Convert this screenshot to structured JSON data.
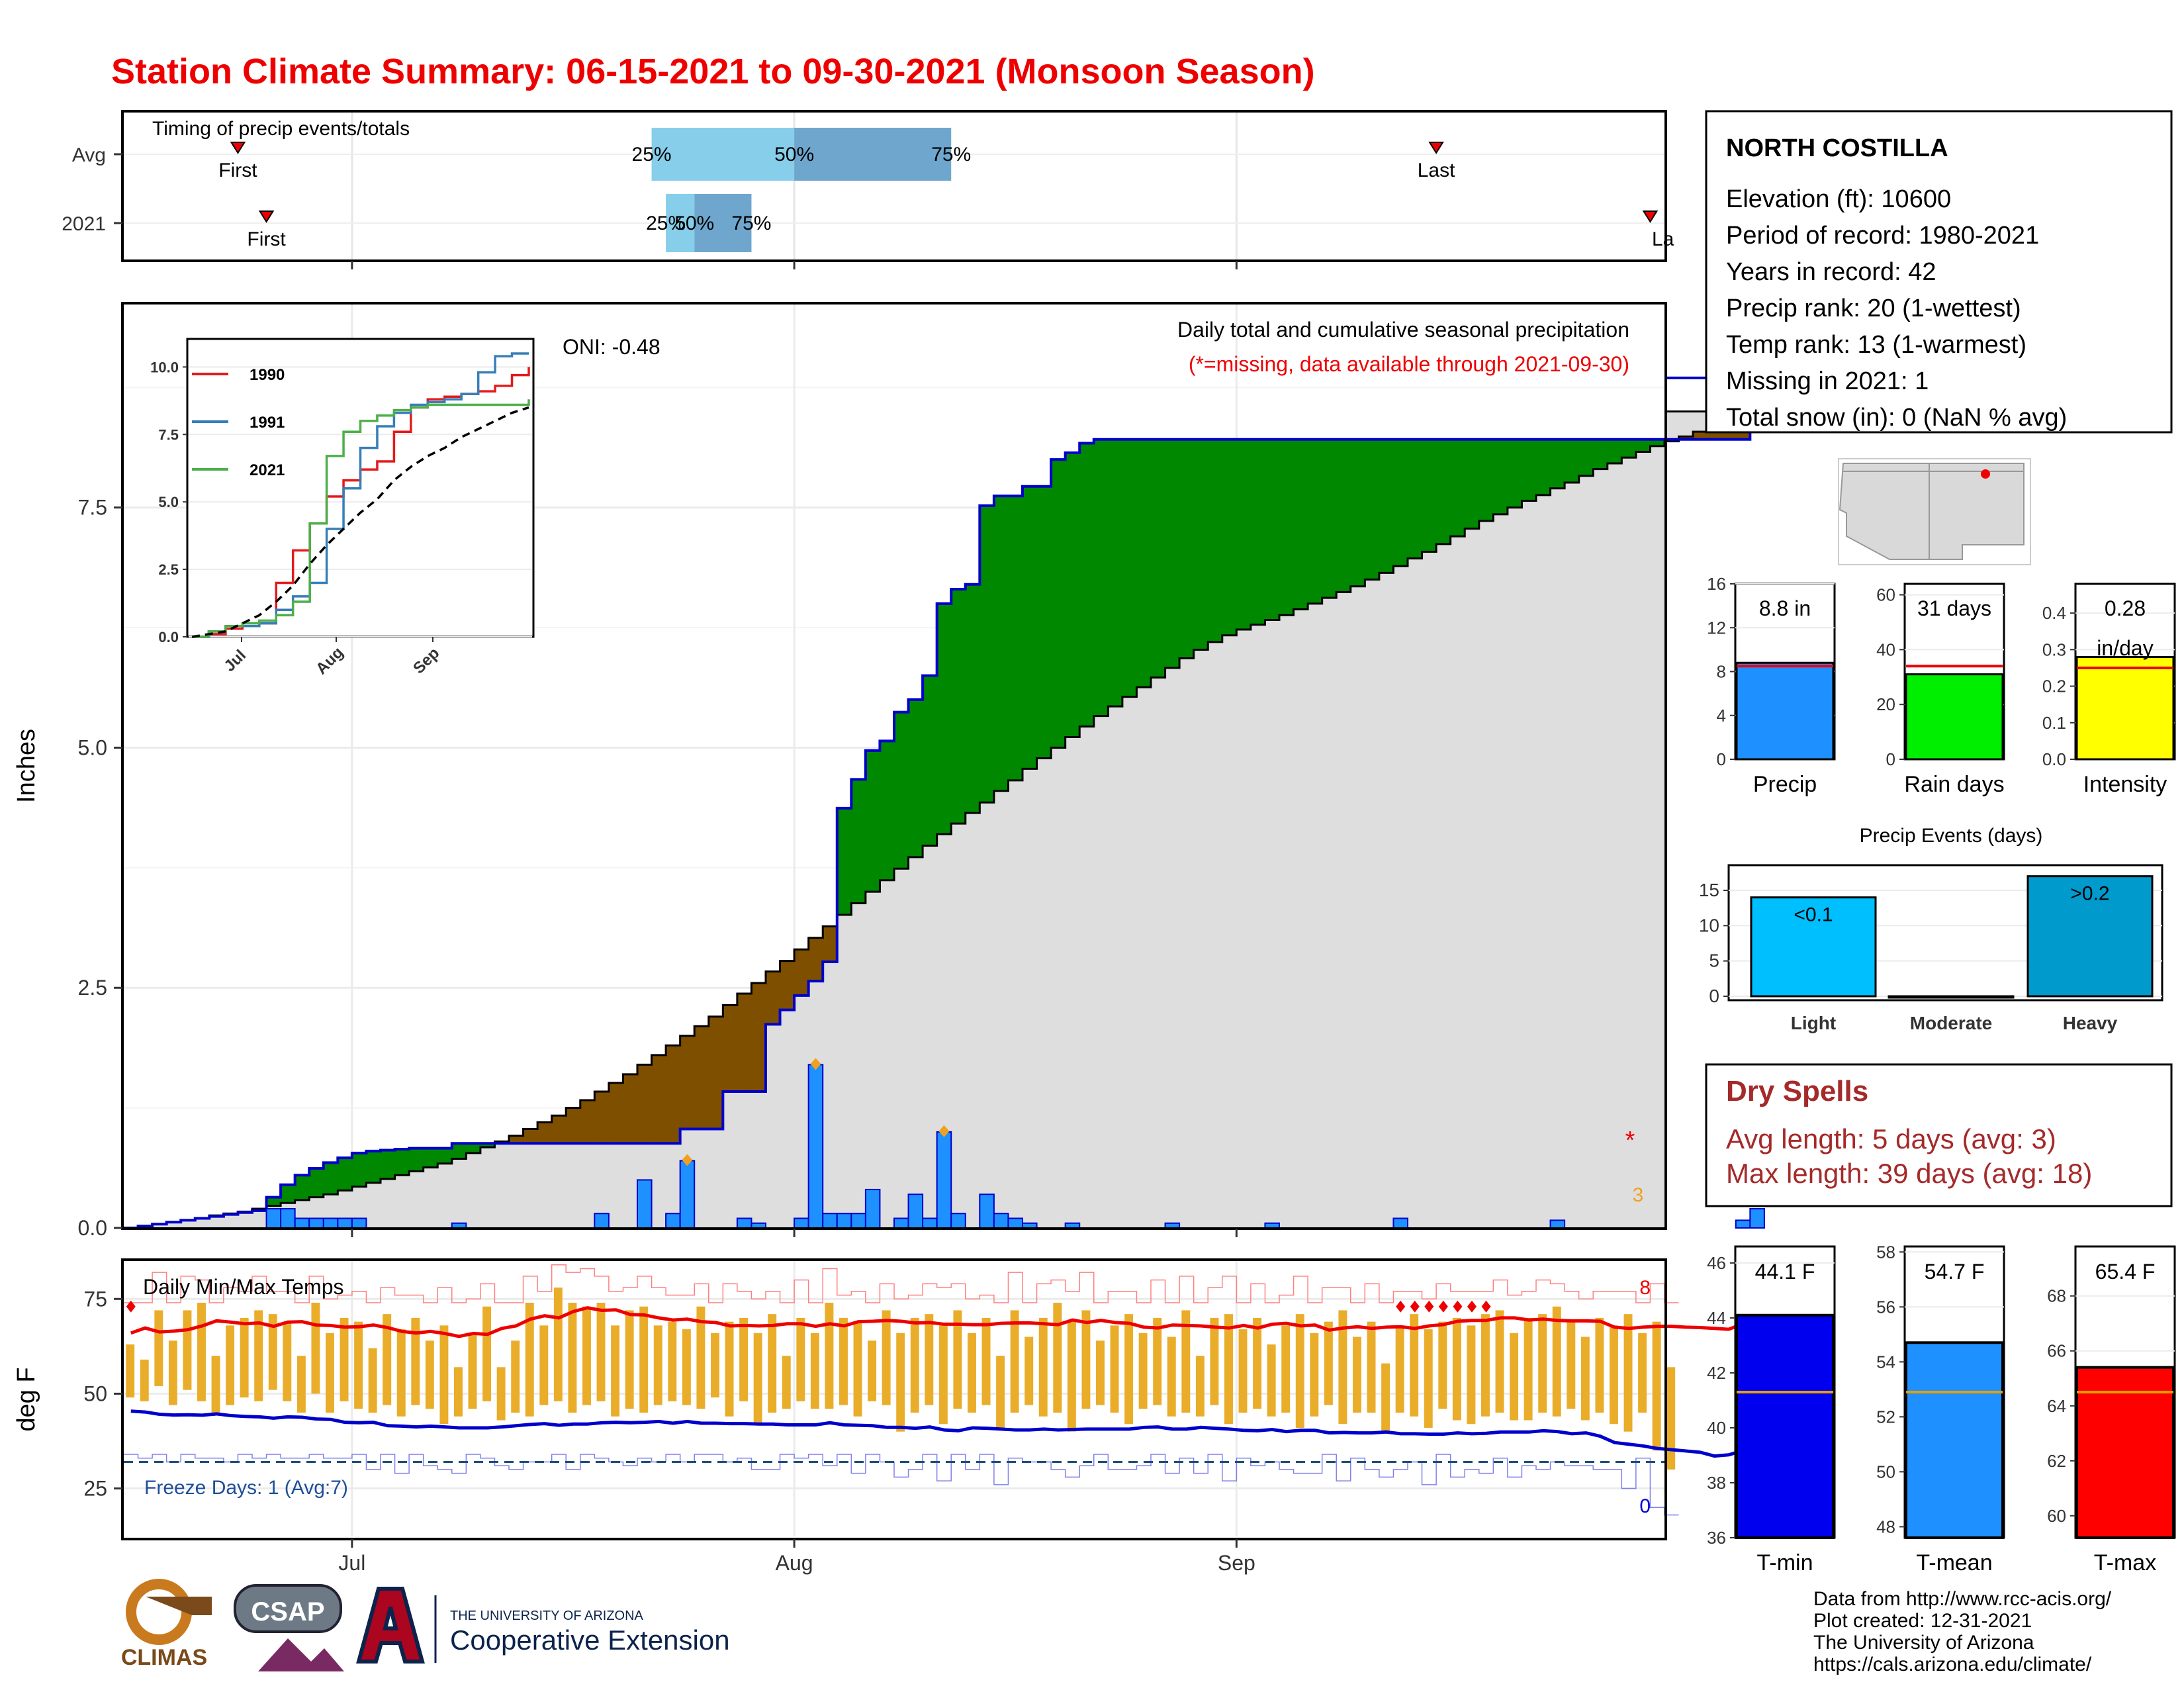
{
  "title": "Station Climate Summary: 06-15-2021 to 09-30-2021 (Monsoon Season)",
  "colors": {
    "title": "#ee0000",
    "wet_green": "#008800",
    "dry_brown": "#7f4f00",
    "avg_fill": "#dedede",
    "bar_blue": "#1e90ff",
    "outline_blue": "#0000cc",
    "q_light": "#87ceeb",
    "q_dark": "#6ea6cd",
    "temp_bar": "#e9ad2a",
    "tmax_line": "#ee0000",
    "tmin_line": "#0000cc",
    "dry_red": "#a52a2a",
    "rain_green": "#00ee00",
    "intensity_yellow": "#ffff00",
    "light_cyan": "#00bfff",
    "heavy_teal": "#009acd",
    "tmin_blue": "#0000ee",
    "tmean_blue": "#1e90ff",
    "tmax_red": "#ff0000",
    "avg_orange": "#e69f00"
  },
  "timing": {
    "title": "Timing of precip events/totals",
    "rows": [
      "Avg",
      "2021"
    ],
    "first_label": "First",
    "last_label": "Last",
    "last_label_cut": "La",
    "q_labels": [
      "25%",
      "50%",
      "75%"
    ]
  },
  "x_axis": {
    "ticks": [
      "Jul",
      "Aug",
      "Sep"
    ]
  },
  "precip": {
    "ylabel": "Inches",
    "yticks": [
      "0.0",
      "2.5",
      "5.0",
      "7.5"
    ],
    "oni": "ONI: -0.48",
    "caption": "Daily total and cumulative seasonal precipitation",
    "missing_note": "(*=missing, data available through 2021-09-30)",
    "missing_star": "*",
    "missing_count": "3"
  },
  "inset": {
    "yticks": [
      "0.0",
      "2.5",
      "5.0",
      "7.5",
      "10.0"
    ],
    "xticks": [
      "Jul",
      "Aug",
      "Sep"
    ],
    "legend": [
      {
        "label": "1990",
        "color": "#e41a1c"
      },
      {
        "label": "1991",
        "color": "#377eb8"
      },
      {
        "label": "2021",
        "color": "#4daf4a"
      }
    ]
  },
  "temps": {
    "ylabel": "deg F",
    "yticks": [
      "25",
      "50",
      "75"
    ],
    "title": "Daily Min/Max Temps",
    "freeze": "Freeze Days: 1 (Avg:7)",
    "hot_count": "8",
    "cold_count": "0"
  },
  "station": {
    "name": "NORTH COSTILLA",
    "lines": [
      "Elevation (ft): 10600",
      "Period of record: 1980-2021",
      "Years in record: 42",
      "Precip rank: 20 (1-wettest)",
      "Temp rank: 13 (1-warmest)",
      "Missing in 2021: 1",
      "Total snow (in): 0 (NaN % avg)"
    ]
  },
  "mini_bars": [
    {
      "label": "Precip",
      "value_label": "8.8 in",
      "yticks": [
        "0",
        "4",
        "8",
        "12",
        "16"
      ],
      "ymax": 16
    },
    {
      "label": "Rain days",
      "value_label": "31 days",
      "yticks": [
        "0",
        "20",
        "40",
        "60"
      ],
      "ymax": 64
    },
    {
      "label": "Intensity",
      "value_label": "0.28",
      "value_label2": "in/day",
      "yticks": [
        "0.0",
        "0.1",
        "0.2",
        "0.3",
        "0.4"
      ],
      "ymax": 0.48
    }
  ],
  "events": {
    "title": "Precip Events (days)",
    "categories": [
      "Light",
      "Moderate",
      "Heavy"
    ],
    "yticks": [
      "0",
      "5",
      "10",
      "15"
    ],
    "labels": [
      "<0.1",
      "",
      ">0.2"
    ]
  },
  "dry_spells": {
    "title": "Dry Spells",
    "avg": "Avg length: 5 days (avg: 3)",
    "max": "Max length: 39 days (avg: 18)"
  },
  "temp_bars": [
    {
      "label": "T-min",
      "value_label": "44.1 F",
      "yticks": [
        "36",
        "38",
        "40",
        "42",
        "44",
        "46"
      ]
    },
    {
      "label": "T-mean",
      "value_label": "54.7 F",
      "yticks": [
        "48",
        "50",
        "52",
        "54",
        "56",
        "58"
      ]
    },
    {
      "label": "T-max",
      "value_label": "65.4 F",
      "yticks": [
        "60",
        "62",
        "64",
        "66",
        "68"
      ]
    }
  ],
  "footer": {
    "lines": [
      "Data from http://www.rcc-acis.org/",
      "Plot created: 12-31-2021",
      "The University of Arizona",
      "https://cals.arizona.edu/climate/"
    ]
  },
  "logos": {
    "climas": "CLIMAS",
    "csap": "CSAP",
    "ua_small": "THE UNIVERSITY OF ARIZONA",
    "ua_big": "Cooperative Extension"
  },
  "chart_data": [
    {
      "type": "bar",
      "title": "Timing of precip events/totals",
      "categories": [
        "Avg",
        "2021"
      ],
      "series": [
        {
          "name": "First",
          "values": [
            "06-23",
            "06-25"
          ]
        },
        {
          "name": "25%",
          "values": [
            "07-22",
            "07-23"
          ]
        },
        {
          "name": "50%",
          "values": [
            "08-01",
            "07-25"
          ]
        },
        {
          "name": "75%",
          "values": [
            "08-12",
            "07-29"
          ]
        },
        {
          "name": "Last",
          "values": [
            "09-15",
            "09-30"
          ]
        }
      ]
    },
    {
      "type": "area",
      "title": "Daily total and cumulative seasonal precipitation",
      "ylabel": "Inches",
      "ylim": [
        0,
        9.6
      ],
      "x_start": "2021-06-15",
      "x_end": "2021-09-30",
      "series": [
        {
          "name": "2021 cumulative",
          "values": [
            0,
            0.02,
            0.04,
            0.06,
            0.08,
            0.1,
            0.12,
            0.14,
            0.16,
            0.18,
            0.32,
            0.45,
            0.55,
            0.62,
            0.68,
            0.73,
            0.78,
            0.8,
            0.81,
            0.82,
            0.83,
            0.83,
            0.83,
            0.88,
            0.88,
            0.88,
            0.88,
            0.88,
            0.88,
            0.88,
            0.88,
            0.88,
            0.88,
            0.88,
            0.88,
            0.88,
            0.88,
            0.88,
            0.88,
            1.03,
            1.03,
            1.03,
            1.42,
            1.42,
            1.42,
            2.12,
            2.27,
            2.42,
            2.57,
            2.77,
            4.37,
            4.67,
            4.97,
            5.07,
            5.37,
            5.5,
            5.75,
            6.5,
            6.65,
            6.7,
            7.52,
            7.62,
            7.62,
            7.72,
            7.72,
            8.0,
            8.07,
            8.17,
            8.21,
            8.21,
            8.21,
            8.21,
            8.21,
            8.21,
            8.21,
            8.21,
            8.21,
            8.21,
            8.21,
            8.21,
            8.21,
            8.21,
            8.21,
            8.21,
            8.21,
            8.21,
            8.21,
            8.21,
            8.21,
            8.21,
            8.21,
            8.21,
            8.21,
            8.21,
            8.21,
            8.21,
            8.21,
            8.21,
            8.21,
            8.21,
            8.21,
            8.21,
            8.21,
            8.21,
            8.21,
            8.21,
            8.21,
            8.21,
            8.21,
            8.21,
            8.21,
            8.21,
            8.21,
            8.21,
            8.67,
            8.85
          ]
        },
        {
          "name": "Average cumulative",
          "values": [
            0,
            0.02,
            0.04,
            0.06,
            0.08,
            0.1,
            0.13,
            0.15,
            0.17,
            0.2,
            0.23,
            0.26,
            0.29,
            0.32,
            0.35,
            0.39,
            0.43,
            0.47,
            0.51,
            0.55,
            0.59,
            0.63,
            0.67,
            0.72,
            0.78,
            0.84,
            0.9,
            0.96,
            1.03,
            1.1,
            1.17,
            1.25,
            1.33,
            1.42,
            1.51,
            1.6,
            1.7,
            1.8,
            1.9,
            2.0,
            2.1,
            2.2,
            2.32,
            2.44,
            2.55,
            2.67,
            2.78,
            2.9,
            3.02,
            3.14,
            3.26,
            3.38,
            3.5,
            3.62,
            3.74,
            3.86,
            3.98,
            4.1,
            4.21,
            4.32,
            4.43,
            4.55,
            4.66,
            4.78,
            4.89,
            5.0,
            5.11,
            5.22,
            5.33,
            5.43,
            5.53,
            5.63,
            5.73,
            5.83,
            5.93,
            6.02,
            6.1,
            6.17,
            6.23,
            6.28,
            6.33,
            6.38,
            6.44,
            6.5,
            6.56,
            6.62,
            6.68,
            6.75,
            6.82,
            6.89,
            6.97,
            7.04,
            7.12,
            7.2,
            7.28,
            7.36,
            7.43,
            7.5,
            7.57,
            7.63,
            7.7,
            7.76,
            7.83,
            7.9,
            7.96,
            8.02,
            8.08,
            8.14,
            8.19,
            8.24,
            8.29,
            8.34,
            8.39,
            8.44,
            8.47,
            8.5
          ]
        }
      ],
      "daily_bars": [
        [
          10,
          0.2
        ],
        [
          11,
          0.2
        ],
        [
          12,
          0.1
        ],
        [
          13,
          0.1
        ],
        [
          14,
          0.1
        ],
        [
          15,
          0.1
        ],
        [
          16,
          0.1
        ],
        [
          23,
          0.05
        ],
        [
          33,
          0.15
        ],
        [
          36,
          0.5
        ],
        [
          38,
          0.15
        ],
        [
          39,
          0.7
        ],
        [
          43,
          0.1
        ],
        [
          44,
          0.05
        ],
        [
          47,
          0.1
        ],
        [
          48,
          1.7
        ],
        [
          49,
          0.15
        ],
        [
          50,
          0.15
        ],
        [
          51,
          0.15
        ],
        [
          52,
          0.4
        ],
        [
          54,
          0.1
        ],
        [
          55,
          0.35
        ],
        [
          56,
          0.1
        ],
        [
          57,
          1.0
        ],
        [
          58,
          0.15
        ],
        [
          60,
          0.35
        ],
        [
          61,
          0.15
        ],
        [
          62,
          0.1
        ],
        [
          63,
          0.05
        ],
        [
          66,
          0.05
        ],
        [
          73,
          0.05
        ],
        [
          80,
          0.05
        ],
        [
          89,
          0.1
        ],
        [
          100,
          0.08
        ],
        [
          113,
          0.08
        ],
        [
          114,
          0.2
        ]
      ]
    },
    {
      "type": "line",
      "title": "Inset cumulative precipitation",
      "ylim": [
        0,
        10.5
      ],
      "series": [
        {
          "name": "1990",
          "values": [
            0,
            0.1,
            0.3,
            0.4,
            0.5,
            2.0,
            3.2,
            4.2,
            5.2,
            5.8,
            6.2,
            6.5,
            7.6,
            8.5,
            8.8,
            8.9,
            9.0,
            9.1,
            9.3,
            9.7,
            10.0
          ]
        },
        {
          "name": "1991",
          "values": [
            0,
            0.2,
            0.4,
            0.4,
            0.5,
            1.0,
            1.5,
            2.0,
            4.0,
            5.5,
            7.0,
            7.8,
            8.3,
            8.6,
            8.7,
            8.8,
            9.0,
            9.8,
            10.4,
            10.5,
            10.5
          ]
        },
        {
          "name": "2021",
          "values": [
            0,
            0.2,
            0.4,
            0.5,
            0.6,
            0.8,
            1.3,
            4.2,
            6.7,
            7.6,
            8.0,
            8.2,
            8.4,
            8.5,
            8.6,
            8.6,
            8.6,
            8.6,
            8.6,
            8.6,
            8.8
          ]
        },
        {
          "name": "Average",
          "values": [
            0,
            0.1,
            0.2,
            0.5,
            0.8,
            1.3,
            1.9,
            2.7,
            3.4,
            4.0,
            4.6,
            5.1,
            5.8,
            6.3,
            6.7,
            7.0,
            7.4,
            7.7,
            8.0,
            8.3,
            8.5
          ]
        }
      ]
    },
    {
      "type": "bar",
      "title": "Daily Min/Max Temps",
      "ylabel": "deg F",
      "ylim": [
        12,
        85
      ],
      "series": [
        {
          "name": "Tmax",
          "values": [
            63,
            59,
            72,
            64,
            72,
            74,
            60,
            68,
            70,
            72,
            71,
            69,
            60,
            74,
            66,
            70,
            69,
            62,
            71,
            67,
            70,
            64,
            68,
            57,
            66,
            73,
            57,
            64,
            74,
            68,
            78,
            74,
            73,
            74,
            68,
            72,
            73,
            68,
            69,
            67,
            73,
            66,
            69,
            70,
            66,
            71,
            60,
            70,
            66,
            74,
            70,
            69,
            64,
            72,
            66,
            70,
            71,
            68,
            72,
            66,
            70,
            60,
            72,
            65,
            70,
            74,
            69,
            72,
            64,
            68,
            71,
            66,
            70,
            65,
            72,
            60,
            70,
            71,
            67,
            70,
            63,
            68,
            71,
            66,
            69,
            72,
            65,
            69,
            58,
            68,
            71,
            67,
            69,
            70,
            68,
            71,
            72,
            66,
            70,
            71,
            73,
            69,
            65,
            70,
            68,
            71,
            66,
            69,
            57,
            70,
            72,
            67,
            70,
            66,
            70,
            64
          ]
        },
        {
          "name": "Tmin",
          "values": [
            49,
            48,
            52,
            47,
            51,
            48,
            45,
            47,
            49,
            48,
            51,
            48,
            45,
            50,
            45,
            48,
            46,
            45,
            47,
            44,
            47,
            46,
            42,
            44,
            46,
            48,
            43,
            45,
            44,
            47,
            48,
            45,
            47,
            48,
            44,
            46,
            45,
            47,
            48,
            47,
            46,
            49,
            44,
            48,
            42,
            45,
            46,
            48,
            46,
            46,
            47,
            44,
            48,
            47,
            40,
            45,
            47,
            42,
            46,
            45,
            47,
            41,
            45,
            47,
            44,
            45,
            40,
            46,
            47,
            45,
            42,
            46,
            47,
            44,
            45,
            44,
            47,
            42,
            45,
            46,
            44,
            45,
            41,
            44,
            47,
            42,
            45,
            45,
            40,
            45,
            44,
            41,
            46,
            43,
            42,
            44,
            45,
            43,
            43,
            45,
            44,
            46,
            43,
            45,
            42,
            40,
            45,
            35,
            30,
            40,
            42,
            37,
            42,
            39,
            37,
            36
          ]
        }
      ],
      "smooth_max_range": [
        58,
        68
      ],
      "smooth_min_range": [
        34,
        44
      ],
      "freeze_line": 32
    },
    {
      "type": "bar",
      "title": "Seasonal totals",
      "categories": [
        "Precip",
        "Rain days",
        "Intensity"
      ],
      "values": [
        8.8,
        31,
        0.28
      ],
      "averages": [
        8.5,
        34,
        0.25
      ]
    },
    {
      "type": "bar",
      "title": "Precip Events (days)",
      "categories": [
        "Light",
        "Moderate",
        "Heavy"
      ],
      "values": [
        14,
        0,
        17
      ],
      "ylim": [
        0,
        18
      ]
    },
    {
      "type": "bar",
      "title": "Seasonal temperatures",
      "categories": [
        "T-min",
        "T-mean",
        "T-max"
      ],
      "values": [
        44.1,
        54.7,
        65.4
      ],
      "averages": [
        41.3,
        52.9,
        64.5
      ],
      "ylims": [
        [
          36,
          46.6
        ],
        [
          47.6,
          58.2
        ],
        [
          59.2,
          69.8
        ]
      ]
    }
  ]
}
